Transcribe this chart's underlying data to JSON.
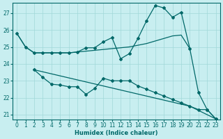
{
  "xlabel": "Humidex (Indice chaleur)",
  "bg_color": "#c8eef0",
  "grid_color": "#a0d8d8",
  "line_color": "#006868",
  "xlim": [
    -0.5,
    23.5
  ],
  "ylim": [
    20.7,
    27.6
  ],
  "yticks": [
    21,
    22,
    23,
    24,
    25,
    26,
    27
  ],
  "xticks": [
    0,
    1,
    2,
    3,
    4,
    5,
    6,
    7,
    8,
    9,
    10,
    11,
    12,
    13,
    14,
    15,
    16,
    17,
    18,
    19,
    20,
    21,
    22,
    23
  ],
  "line1_x": [
    0,
    1,
    2,
    3,
    4,
    5,
    6,
    7,
    8,
    9,
    10,
    11,
    12,
    13,
    14,
    15,
    16,
    17,
    18,
    19,
    20
  ],
  "line1_y": [
    25.8,
    25.0,
    24.65,
    24.65,
    24.65,
    24.65,
    24.65,
    24.7,
    24.75,
    24.8,
    24.85,
    24.9,
    24.95,
    25.0,
    25.1,
    25.2,
    25.35,
    25.5,
    25.65,
    25.7,
    24.9
  ],
  "line2_x": [
    0,
    1,
    2,
    3,
    4,
    5,
    6,
    7,
    8,
    9,
    10,
    11,
    12,
    13,
    14,
    15,
    16,
    17,
    18,
    19,
    20,
    21,
    22,
    23
  ],
  "line2_y": [
    25.8,
    25.0,
    24.65,
    24.65,
    24.65,
    24.65,
    24.65,
    24.7,
    24.95,
    24.95,
    25.3,
    25.55,
    24.3,
    24.6,
    25.5,
    26.55,
    27.45,
    27.3,
    26.75,
    27.05,
    24.9,
    22.3,
    21.3,
    20.75
  ],
  "line3_x": [
    2,
    3,
    4,
    5,
    6,
    7,
    8,
    9,
    10,
    11,
    12,
    13,
    14,
    15,
    16,
    17,
    18,
    19,
    20,
    21,
    22,
    23
  ],
  "line3_y": [
    23.65,
    23.2,
    22.8,
    22.75,
    22.65,
    22.65,
    22.2,
    22.55,
    23.15,
    23.0,
    23.0,
    23.0,
    22.7,
    22.5,
    22.3,
    22.1,
    21.9,
    21.7,
    21.5,
    21.3,
    21.3,
    20.75
  ],
  "line4_x": [
    2,
    20,
    23
  ],
  "line4_y": [
    23.65,
    21.5,
    20.75
  ]
}
